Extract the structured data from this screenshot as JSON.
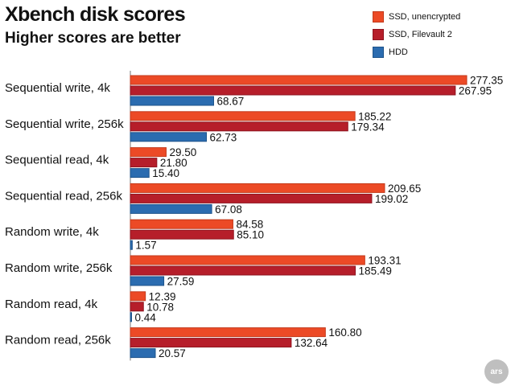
{
  "chart_data": {
    "type": "bar",
    "orientation": "horizontal",
    "title": "Xbench disk scores",
    "subtitle": "Higher scores are better",
    "categories": [
      "Sequential write, 4k",
      "Sequential write, 256k",
      "Sequential read, 4k",
      "Sequential read, 256k",
      "Random write, 4k",
      "Random write, 256k",
      "Random read, 4k",
      "Random read, 256k"
    ],
    "series": [
      {
        "name": "SSD, unencrypted",
        "color": "#ec4a26",
        "values": [
          "277.35",
          "185.22",
          "29.50",
          "209.65",
          "84.58",
          "193.31",
          "12.39",
          "160.80"
        ]
      },
      {
        "name": "SSD, Filevault 2",
        "color": "#b61e2a",
        "values": [
          "267.95",
          "179.34",
          "21.80",
          "199.02",
          "85.10",
          "185.49",
          "10.78",
          "132.64"
        ]
      },
      {
        "name": "HDD",
        "color": "#2b6cb0",
        "values": [
          "68.67",
          "62.73",
          "15.40",
          "67.08",
          "1.57",
          "27.59",
          "0.44",
          "20.57"
        ]
      }
    ],
    "xlim": [
      0,
      277.35
    ],
    "grid": false,
    "legend": "top-right",
    "xlabel": "",
    "ylabel": ""
  },
  "logo_text": "ars"
}
